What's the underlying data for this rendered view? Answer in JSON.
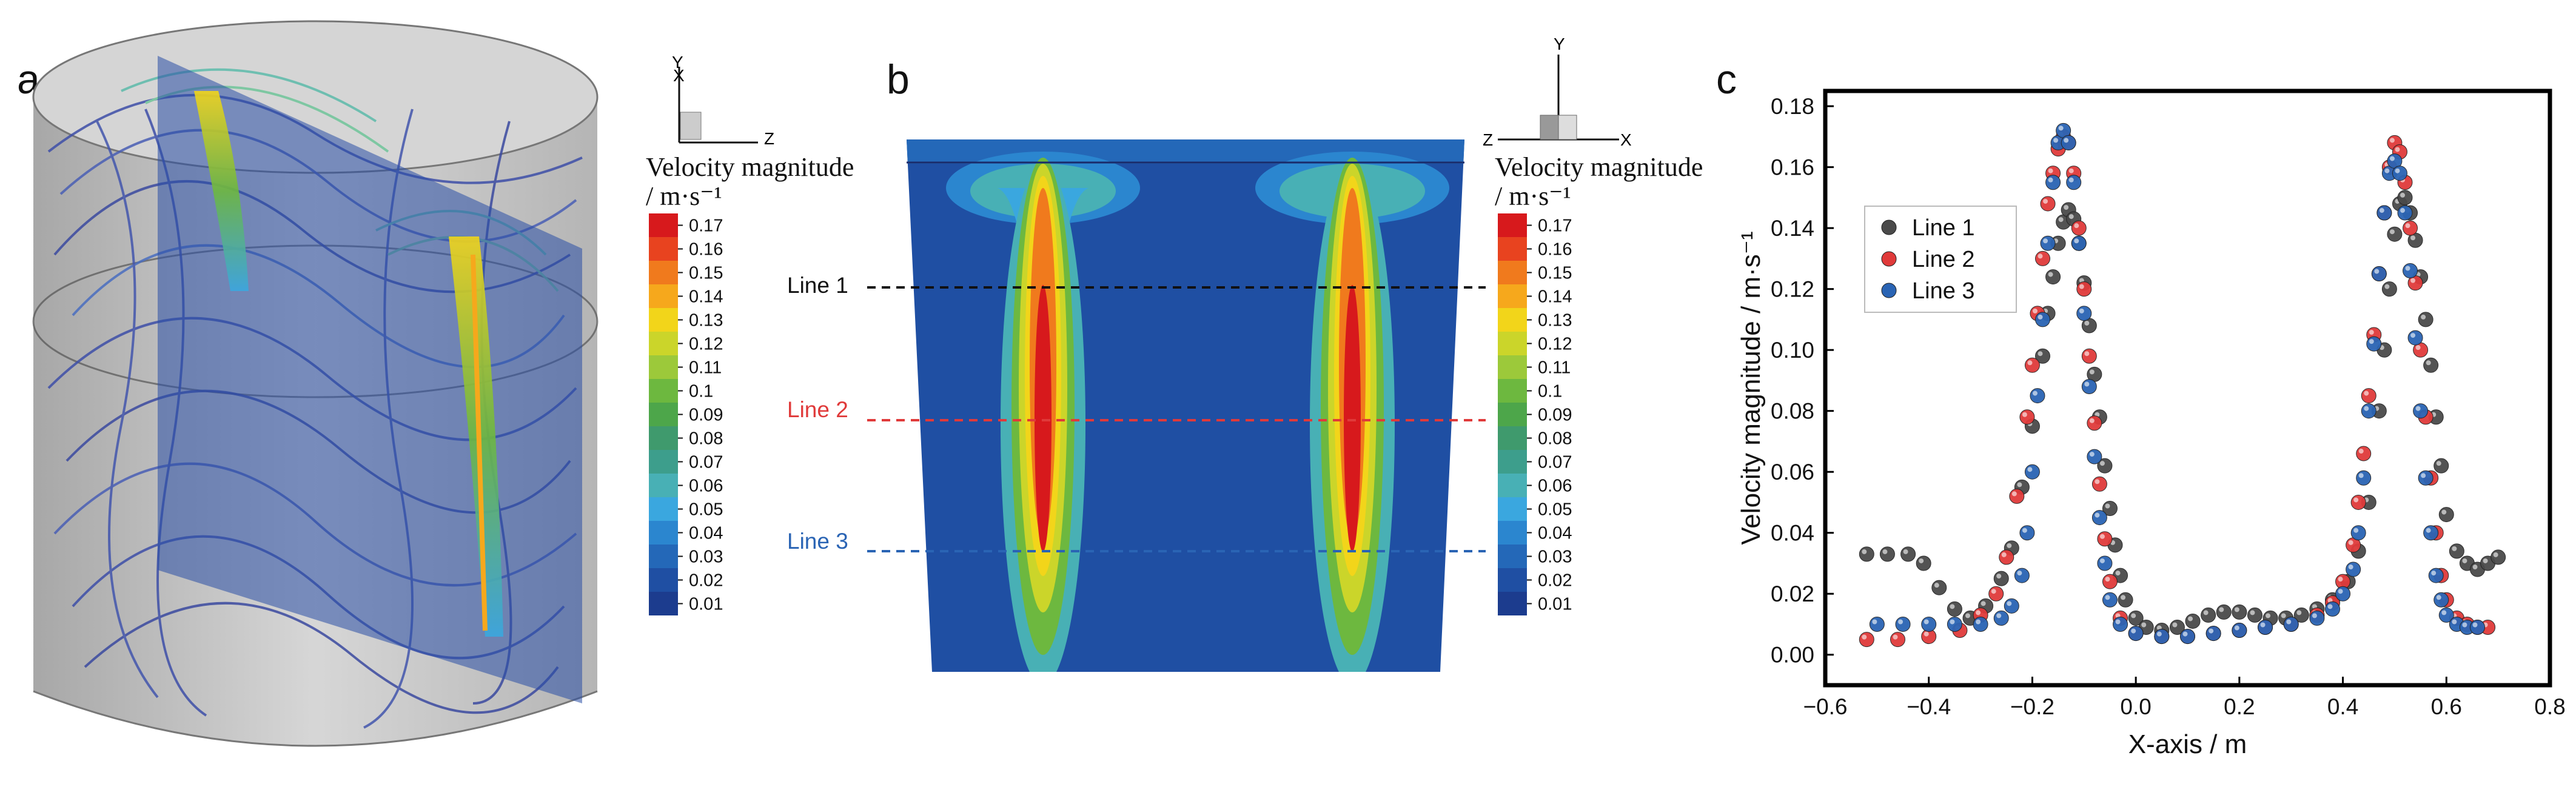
{
  "panels": {
    "a": "a",
    "b": "b",
    "c": "c"
  },
  "colorbar": {
    "title_line1": "Velocity magnitude",
    "title_line2": "/ m·s⁻¹",
    "ticks": [
      "0.17",
      "0.16",
      "0.15",
      "0.14",
      "0.13",
      "0.12",
      "0.11",
      "0.1",
      "0.09",
      "0.08",
      "0.07",
      "0.06",
      "0.05",
      "0.04",
      "0.03",
      "0.02",
      "0.01"
    ],
    "colors": [
      "#d7191c",
      "#e8431f",
      "#f07a1d",
      "#f6a81c",
      "#f2d51a",
      "#cbd52a",
      "#9cc93a",
      "#6db83f",
      "#4da64a",
      "#3f9a6d",
      "#3d9e8c",
      "#48b0b5",
      "#3aa7df",
      "#2b86cf",
      "#2468b8",
      "#1f4fa3",
      "#1c3c8e"
    ]
  },
  "axes_a": {
    "y": "Y",
    "x": "X",
    "z": "Z"
  },
  "axes_b": {
    "y": "Y",
    "z": "Z",
    "x": "X"
  },
  "lines": [
    {
      "label": "Line 1",
      "color": "#111111"
    },
    {
      "label": "Line 2",
      "color": "#e03a3a"
    },
    {
      "label": "Line 3",
      "color": "#2a64b4"
    }
  ],
  "chart_data": {
    "type": "scatter",
    "xlabel": "X-axis / m",
    "ylabel": "Velocity magnitude / m·s⁻¹",
    "xlim": [
      -0.6,
      0.8
    ],
    "ylim": [
      -0.01,
      0.185
    ],
    "xticks": [
      "−0.6",
      "−0.4",
      "−0.2",
      "0.0",
      "0.2",
      "0.4",
      "0.6",
      "0.8"
    ],
    "xtick_values": [
      -0.6,
      -0.4,
      -0.2,
      0.0,
      0.2,
      0.4,
      0.6,
      0.8
    ],
    "yticks": [
      "0.00",
      "0.02",
      "0.04",
      "0.06",
      "0.08",
      "0.10",
      "0.12",
      "0.14",
      "0.16",
      "0.18"
    ],
    "ytick_values": [
      0.0,
      0.02,
      0.04,
      0.06,
      0.08,
      0.1,
      0.12,
      0.14,
      0.16,
      0.18
    ],
    "legend_position": "upper-left",
    "series": [
      {
        "name": "Line 1",
        "color": "#4a4a4a",
        "x": [
          -0.52,
          -0.48,
          -0.44,
          -0.41,
          -0.38,
          -0.35,
          -0.32,
          -0.29,
          -0.26,
          -0.24,
          -0.22,
          -0.2,
          -0.18,
          -0.17,
          -0.16,
          -0.15,
          -0.14,
          -0.13,
          -0.12,
          -0.11,
          -0.1,
          -0.09,
          -0.08,
          -0.07,
          -0.06,
          -0.05,
          -0.04,
          -0.03,
          -0.02,
          0.0,
          0.02,
          0.05,
          0.08,
          0.11,
          0.14,
          0.17,
          0.2,
          0.23,
          0.26,
          0.29,
          0.32,
          0.35,
          0.38,
          0.41,
          0.43,
          0.45,
          0.47,
          0.48,
          0.49,
          0.5,
          0.51,
          0.52,
          0.53,
          0.54,
          0.55,
          0.56,
          0.57,
          0.58,
          0.59,
          0.6,
          0.62,
          0.64,
          0.66,
          0.68,
          0.7
        ],
        "y": [
          0.033,
          0.033,
          0.033,
          0.03,
          0.022,
          0.015,
          0.012,
          0.016,
          0.025,
          0.035,
          0.055,
          0.075,
          0.098,
          0.112,
          0.124,
          0.135,
          0.142,
          0.146,
          0.143,
          0.135,
          0.122,
          0.108,
          0.092,
          0.078,
          0.062,
          0.048,
          0.036,
          0.026,
          0.018,
          0.012,
          0.009,
          0.008,
          0.009,
          0.011,
          0.013,
          0.014,
          0.014,
          0.013,
          0.012,
          0.012,
          0.013,
          0.015,
          0.018,
          0.024,
          0.034,
          0.05,
          0.08,
          0.1,
          0.12,
          0.138,
          0.148,
          0.15,
          0.145,
          0.136,
          0.124,
          0.11,
          0.095,
          0.078,
          0.062,
          0.046,
          0.034,
          0.03,
          0.028,
          0.03,
          0.032
        ]
      },
      {
        "name": "Line 2",
        "color": "#e03a3a",
        "x": [
          -0.52,
          -0.46,
          -0.4,
          -0.34,
          -0.3,
          -0.27,
          -0.25,
          -0.23,
          -0.21,
          -0.2,
          -0.19,
          -0.18,
          -0.17,
          -0.16,
          -0.15,
          -0.14,
          -0.13,
          -0.12,
          -0.11,
          -0.1,
          -0.09,
          -0.08,
          -0.07,
          -0.06,
          -0.05,
          -0.03,
          0.0,
          0.05,
          0.1,
          0.15,
          0.2,
          0.25,
          0.3,
          0.35,
          0.38,
          0.4,
          0.42,
          0.43,
          0.44,
          0.45,
          0.46,
          0.47,
          0.48,
          0.49,
          0.5,
          0.51,
          0.52,
          0.53,
          0.54,
          0.55,
          0.56,
          0.57,
          0.58,
          0.59,
          0.6,
          0.62,
          0.64,
          0.66,
          0.68
        ],
        "y": [
          0.005,
          0.005,
          0.006,
          0.008,
          0.013,
          0.02,
          0.032,
          0.052,
          0.078,
          0.095,
          0.112,
          0.13,
          0.148,
          0.158,
          0.166,
          0.17,
          0.168,
          0.158,
          0.14,
          0.12,
          0.098,
          0.076,
          0.056,
          0.038,
          0.024,
          0.012,
          0.007,
          0.006,
          0.006,
          0.007,
          0.008,
          0.009,
          0.01,
          0.013,
          0.017,
          0.024,
          0.036,
          0.05,
          0.066,
          0.085,
          0.105,
          0.125,
          0.145,
          0.16,
          0.168,
          0.165,
          0.155,
          0.14,
          0.122,
          0.1,
          0.078,
          0.058,
          0.04,
          0.026,
          0.018,
          0.012,
          0.01,
          0.009,
          0.009
        ]
      },
      {
        "name": "Line 3",
        "color": "#2a64b4",
        "x": [
          -0.5,
          -0.45,
          -0.4,
          -0.35,
          -0.3,
          -0.26,
          -0.24,
          -0.22,
          -0.21,
          -0.2,
          -0.19,
          -0.18,
          -0.17,
          -0.16,
          -0.15,
          -0.14,
          -0.13,
          -0.12,
          -0.11,
          -0.1,
          -0.09,
          -0.08,
          -0.07,
          -0.06,
          -0.05,
          -0.03,
          0.0,
          0.05,
          0.1,
          0.15,
          0.2,
          0.25,
          0.3,
          0.35,
          0.38,
          0.4,
          0.42,
          0.43,
          0.44,
          0.45,
          0.46,
          0.47,
          0.48,
          0.49,
          0.5,
          0.51,
          0.52,
          0.53,
          0.54,
          0.55,
          0.56,
          0.57,
          0.58,
          0.59,
          0.6,
          0.62,
          0.64,
          0.66
        ],
        "y": [
          0.01,
          0.01,
          0.01,
          0.01,
          0.01,
          0.012,
          0.016,
          0.026,
          0.04,
          0.06,
          0.085,
          0.11,
          0.135,
          0.155,
          0.168,
          0.172,
          0.168,
          0.155,
          0.135,
          0.112,
          0.088,
          0.065,
          0.045,
          0.03,
          0.018,
          0.01,
          0.007,
          0.006,
          0.006,
          0.007,
          0.008,
          0.009,
          0.01,
          0.012,
          0.015,
          0.02,
          0.028,
          0.04,
          0.058,
          0.08,
          0.102,
          0.125,
          0.145,
          0.158,
          0.162,
          0.158,
          0.145,
          0.126,
          0.104,
          0.08,
          0.058,
          0.04,
          0.026,
          0.018,
          0.013,
          0.01,
          0.009,
          0.009
        ]
      }
    ]
  }
}
